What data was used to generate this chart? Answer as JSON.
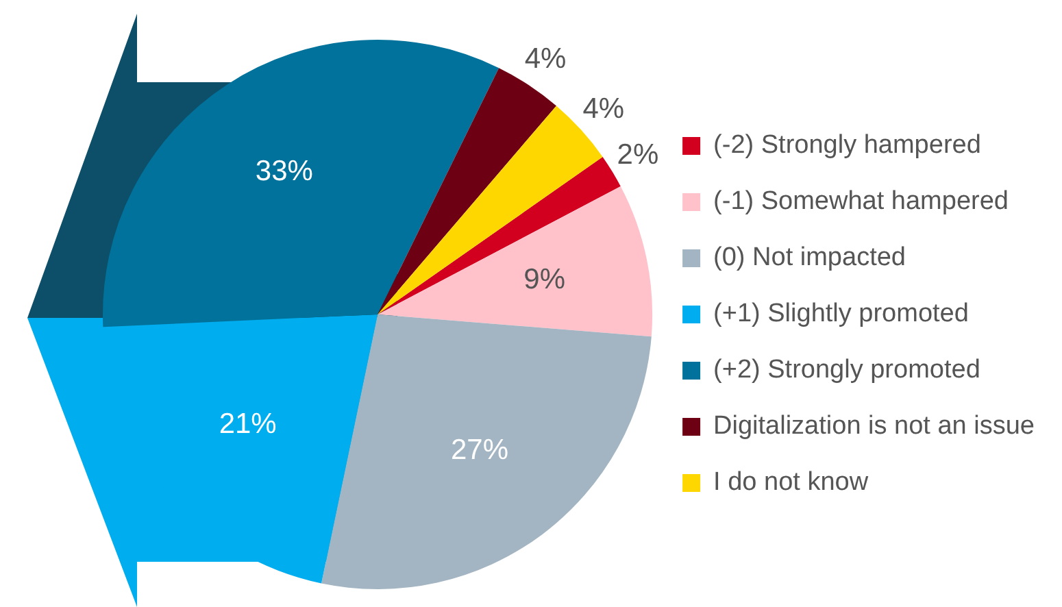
{
  "chart_data": {
    "type": "pie",
    "categories": [
      "(-2) Strongly hampered",
      "(-1) Somewhat hampered",
      "(0) Not impacted",
      "(+1) Slightly promoted",
      "(+2) Strongly promoted",
      "Digitalization is not an issue",
      "I do not know"
    ],
    "values": [
      2,
      9,
      27,
      21,
      33,
      4,
      4
    ],
    "colors": [
      "#d2001e",
      "#ffc2cb",
      "#a3b5c2",
      "#00adef",
      "#00729b",
      "#6e0014",
      "#ffd700"
    ],
    "value_labels": [
      "2%",
      "9%",
      "27%",
      "21%",
      "33%",
      "4%",
      "4%"
    ],
    "legend": "right"
  }
}
